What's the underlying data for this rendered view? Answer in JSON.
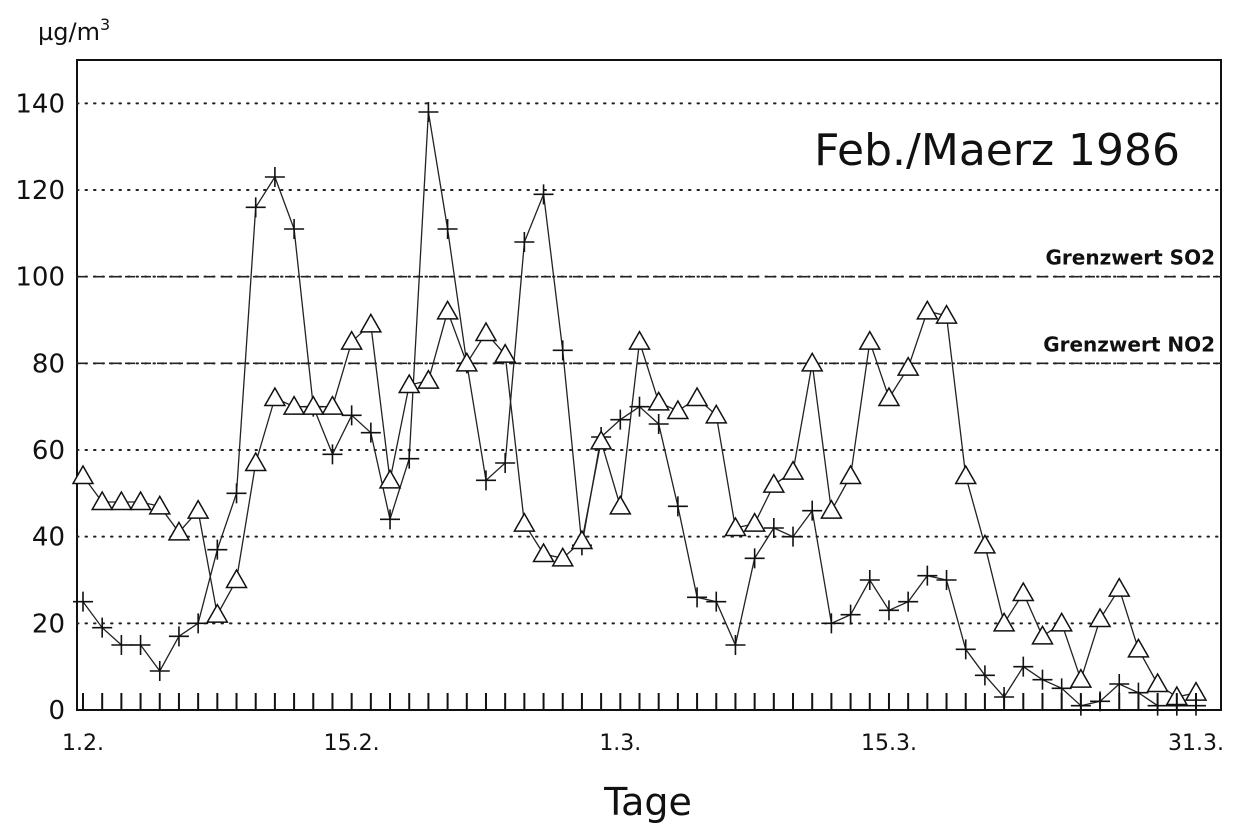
{
  "chart_data": {
    "type": "line",
    "title": "Feb./Maerz 1986",
    "ylabel": "ug/m3",
    "ylabel_prefix": "µg/m",
    "ylabel_sup": "3",
    "xlabel": "Tage",
    "ylim": [
      0,
      150
    ],
    "xlim": [
      1,
      59
    ],
    "yticks": [
      0,
      20,
      40,
      60,
      80,
      100,
      120,
      140
    ],
    "ytick_labels": [
      "0",
      "20",
      "40",
      "60",
      "80",
      "100",
      "120",
      "140"
    ],
    "xtick_labels": [
      {
        "day": 1,
        "label": "1.2."
      },
      {
        "day": 15,
        "label": "15.2."
      },
      {
        "day": 29,
        "label": "1.3."
      },
      {
        "day": 43,
        "label": "15.3."
      },
      {
        "day": 59,
        "label": "31.3."
      }
    ],
    "grid": "horizontal dotted",
    "reference_lines": [
      {
        "label": "Grenzwert SO2",
        "value": 100
      },
      {
        "label": "Grenzwert NO2",
        "value": 80
      }
    ],
    "series": [
      {
        "marker": "plus",
        "x": [
          1,
          2,
          3,
          4,
          5,
          6,
          7,
          8,
          9,
          10,
          11,
          12,
          13,
          14,
          15,
          16,
          17,
          18,
          19,
          20,
          21,
          22,
          23,
          24,
          25,
          26,
          27,
          28,
          29,
          30,
          31,
          32,
          33,
          34,
          35,
          36,
          37,
          38,
          39,
          40,
          41,
          42,
          43,
          44,
          45,
          46,
          47,
          48,
          49,
          50,
          51,
          52,
          53,
          54,
          55,
          56,
          57,
          58,
          59
        ],
        "values": [
          25,
          19,
          15,
          15,
          9,
          17,
          20,
          37,
          50,
          116,
          123,
          111,
          70,
          59,
          68,
          64,
          44,
          58,
          138,
          111,
          80,
          53,
          57,
          108,
          119,
          83,
          38,
          63,
          67,
          70,
          66,
          47,
          26,
          25,
          15,
          35,
          42,
          40,
          46,
          20,
          22,
          30,
          23,
          25,
          31,
          30,
          14,
          8,
          3,
          10,
          7,
          5,
          1,
          2,
          6,
          4,
          1,
          1,
          1
        ]
      },
      {
        "marker": "triangle",
        "x": [
          1,
          2,
          3,
          4,
          5,
          6,
          7,
          8,
          9,
          10,
          11,
          12,
          13,
          14,
          15,
          16,
          17,
          18,
          19,
          20,
          21,
          22,
          23,
          24,
          25,
          26,
          27,
          28,
          29,
          30,
          31,
          32,
          33,
          34,
          35,
          36,
          37,
          38,
          39,
          40,
          41,
          42,
          43,
          44,
          45,
          46,
          47,
          48,
          49,
          50,
          51,
          52,
          53,
          54,
          55,
          56,
          57,
          58,
          59
        ],
        "values": [
          54,
          48,
          48,
          48,
          47,
          41,
          46,
          22,
          30,
          57,
          72,
          70,
          70,
          70,
          85,
          89,
          53,
          75,
          76,
          92,
          80,
          87,
          82,
          43,
          36,
          35,
          39,
          62,
          47,
          85,
          71,
          69,
          72,
          68,
          42,
          43,
          52,
          55,
          80,
          46,
          54,
          85,
          72,
          79,
          92,
          91,
          54,
          38,
          20,
          27,
          17,
          20,
          7,
          21,
          28,
          14,
          6,
          3,
          4
        ]
      }
    ]
  }
}
